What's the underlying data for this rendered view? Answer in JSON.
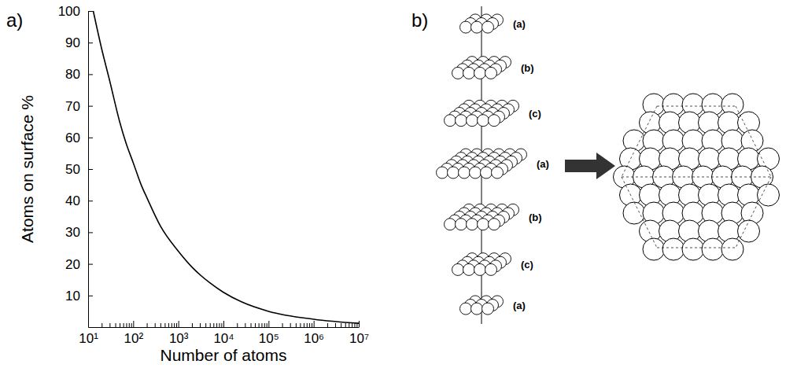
{
  "panel_labels": [
    "a)",
    "b)"
  ],
  "chart_data": {
    "type": "line",
    "log": "x",
    "grid": false,
    "color": "#000000",
    "x_label": "Number of atoms",
    "y_label": "Atoms on surface %",
    "xlim": [
      10,
      10000000
    ],
    "ylim": [
      0,
      100
    ],
    "xticks": [
      {
        "value": 10,
        "label": "10¹"
      },
      {
        "value": 20,
        "label": null
      },
      {
        "value": 30,
        "label": null
      },
      {
        "value": 40,
        "label": null
      },
      {
        "value": 50,
        "label": null
      },
      {
        "value": 60,
        "label": null
      },
      {
        "value": 70,
        "label": null
      },
      {
        "value": 80,
        "label": null
      },
      {
        "value": 90,
        "label": null
      },
      {
        "value": 100,
        "label": "10²"
      },
      {
        "value": 200,
        "label": null
      },
      {
        "value": 300,
        "label": null
      },
      {
        "value": 400,
        "label": null
      },
      {
        "value": 500,
        "label": null
      },
      {
        "value": 600,
        "label": null
      },
      {
        "value": 700,
        "label": null
      },
      {
        "value": 800,
        "label": null
      },
      {
        "value": 900,
        "label": null
      },
      {
        "value": 1000,
        "label": "10³"
      },
      {
        "value": 2000,
        "label": null
      },
      {
        "value": 3000,
        "label": null
      },
      {
        "value": 4000,
        "label": null
      },
      {
        "value": 5000,
        "label": null
      },
      {
        "value": 6000,
        "label": null
      },
      {
        "value": 7000,
        "label": null
      },
      {
        "value": 8000,
        "label": null
      },
      {
        "value": 9000,
        "label": null
      },
      {
        "value": 10000,
        "label": "10⁴"
      },
      {
        "value": 20000,
        "label": null
      },
      {
        "value": 30000,
        "label": null
      },
      {
        "value": 40000,
        "label": null
      },
      {
        "value": 50000,
        "label": null
      },
      {
        "value": 60000,
        "label": null
      },
      {
        "value": 70000,
        "label": null
      },
      {
        "value": 80000,
        "label": null
      },
      {
        "value": 90000,
        "label": null
      },
      {
        "value": 100000,
        "label": "10⁵"
      },
      {
        "value": 200000,
        "label": null
      },
      {
        "value": 300000,
        "label": null
      },
      {
        "value": 400000,
        "label": null
      },
      {
        "value": 500000,
        "label": null
      },
      {
        "value": 600000,
        "label": null
      },
      {
        "value": 700000,
        "label": null
      },
      {
        "value": 800000,
        "label": null
      },
      {
        "value": 900000,
        "label": null
      },
      {
        "value": 1000000,
        "label": "10⁶"
      },
      {
        "value": 2000000,
        "label": null
      },
      {
        "value": 3000000,
        "label": null
      },
      {
        "value": 4000000,
        "label": null
      },
      {
        "value": 5000000,
        "label": null
      },
      {
        "value": 6000000,
        "label": null
      },
      {
        "value": 7000000,
        "label": null
      },
      {
        "value": 8000000,
        "label": null
      },
      {
        "value": 9000000,
        "label": null
      },
      {
        "value": 10000000,
        "label": "10⁷"
      }
    ],
    "yticks": [
      10,
      20,
      30,
      40,
      50,
      60,
      70,
      80,
      90,
      100
    ],
    "x": [
      13,
      20,
      30,
      50,
      70,
      100,
      150,
      200,
      400,
      1000,
      2000,
      5000,
      10000,
      25000,
      100000,
      1000000,
      10000000
    ],
    "values": [
      100,
      88,
      78,
      65,
      58,
      52,
      45,
      41,
      32,
      24,
      19,
      14,
      11,
      8,
      5,
      2.5,
      1.2
    ]
  },
  "diagram": {
    "layer_labels": [
      "(a)",
      "(b)",
      "(c)",
      "(a)",
      "(b)",
      "(c)",
      "(a)"
    ]
  }
}
